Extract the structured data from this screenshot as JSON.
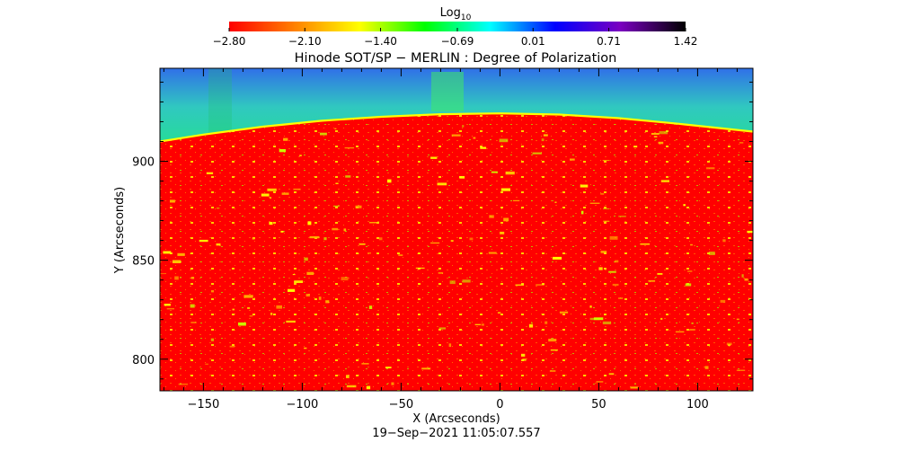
{
  "chart_data": {
    "type": "heatmap",
    "title": "Hinode SOT/SP − MERLIN : Degree of Polarization",
    "timestamp": "19−Sep−2021 11:05:07.557",
    "xlabel": "X (Arcseconds)",
    "ylabel": "Y (Arcseconds)",
    "xlim": [
      -172,
      128
    ],
    "ylim": [
      784,
      947
    ],
    "x_ticks": [
      -150,
      -100,
      -50,
      0,
      50,
      100
    ],
    "x_tick_labels": [
      "−150",
      "−100",
      "−50",
      "0",
      "50",
      "100"
    ],
    "y_ticks": [
      800,
      850,
      900
    ],
    "y_tick_labels": [
      "800",
      "850",
      "900"
    ],
    "colorbar": {
      "label_base": "Log",
      "label_sub": "10",
      "scale": "log10",
      "range": [
        -2.8,
        1.42
      ],
      "ticks": [
        -2.8,
        -2.1,
        -1.4,
        -0.69,
        0.01,
        0.71,
        1.42
      ],
      "tick_labels": [
        "−2.80",
        "−2.10",
        "−1.40",
        "−0.69",
        "0.01",
        "0.71",
        "1.42"
      ],
      "colors": [
        "#ff0000",
        "#ff8000",
        "#ffff00",
        "#00ff00",
        "#00ffff",
        "#0000ff",
        "#7b00c0",
        "#000000"
      ]
    },
    "limb_curve": {
      "x": [
        -172,
        -150,
        -120,
        -90,
        -60,
        -30,
        0,
        30,
        60,
        90,
        128
      ],
      "y": [
        910,
        913.5,
        917.5,
        920.5,
        922.5,
        923.8,
        924.2,
        923.6,
        921.8,
        919,
        915
      ]
    },
    "regions": {
      "disk_color": "#ff0000",
      "limb_edge_color": "#ffff00",
      "off_limb_colors": [
        "#00ff40",
        "#20e880",
        "#30c8c0",
        "#3070e8"
      ]
    },
    "tick_marks": {
      "x_minor_every": 10,
      "y_minor_every": 10
    }
  }
}
